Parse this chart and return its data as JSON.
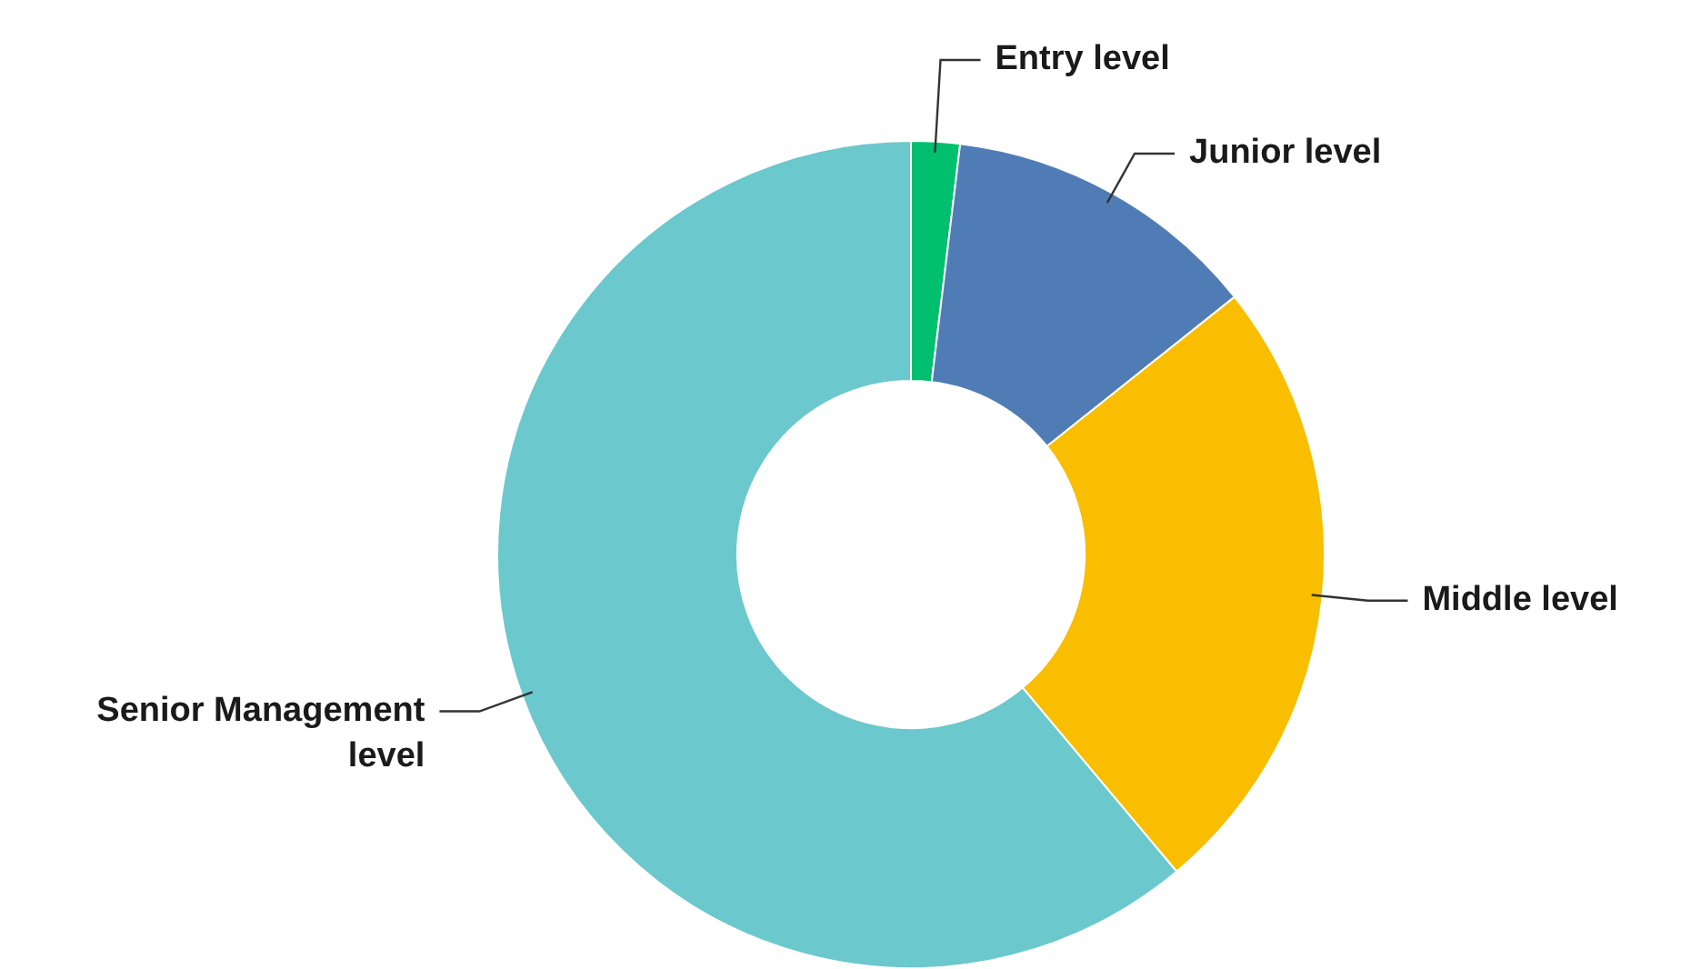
{
  "chart_data": {
    "type": "donut",
    "categories": [
      "Entry level",
      "Junior level",
      "Middle level",
      "Senior Management level"
    ],
    "values": [
      1.9,
      12.4,
      24.6,
      61.1
    ],
    "colors": [
      "#00bf6f",
      "#507cb6",
      "#f9be00",
      "#6bc8cd"
    ],
    "legend": false
  }
}
